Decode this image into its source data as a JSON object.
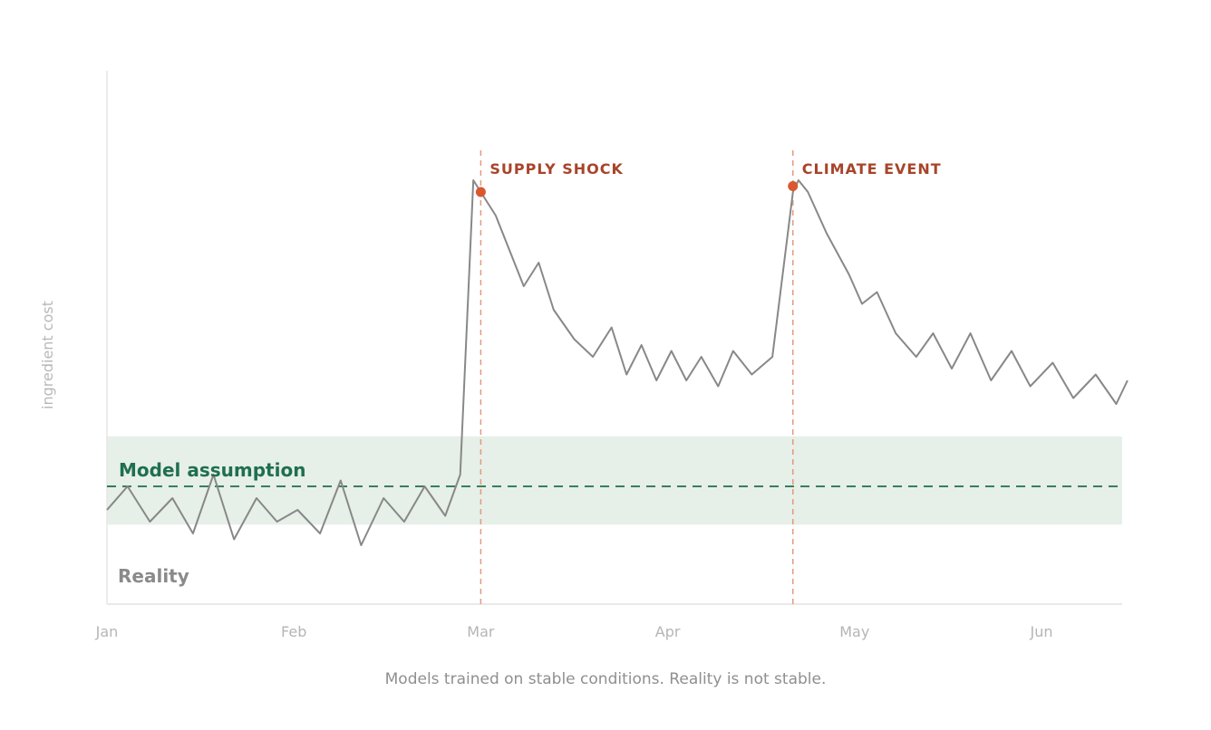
{
  "chart_data": {
    "type": "line",
    "ylabel": "ingredient cost",
    "xlabel": "",
    "x_ticks": [
      "Jan",
      "Feb",
      "Mar",
      "Apr",
      "May",
      "Jun"
    ],
    "ylim": [
      0,
      100
    ],
    "grid": false,
    "caption": "Models trained on stable conditions. Reality is not stable.",
    "model_assumption": {
      "label": "Model assumption",
      "value": 20,
      "band": [
        13.5,
        28.5
      ],
      "color": "#1f6f50",
      "band_color": "#e6efe8"
    },
    "series": [
      {
        "name": "Reality",
        "color": "#888888",
        "x": [
          0,
          0.11,
          0.23,
          0.35,
          0.46,
          0.57,
          0.68,
          0.8,
          0.91,
          1.02,
          1.14,
          1.25,
          1.36,
          1.48,
          1.59,
          1.7,
          1.81,
          1.89,
          1.96,
          2.0,
          2.08,
          2.23,
          2.31,
          2.39,
          2.5,
          2.6,
          2.7,
          2.78,
          2.86,
          2.94,
          3.02,
          3.1,
          3.18,
          3.27,
          3.35,
          3.45,
          3.56,
          3.67,
          3.7,
          3.75,
          3.85,
          3.97,
          4.04,
          4.12,
          4.22,
          4.33,
          4.42,
          4.52,
          4.62,
          4.73,
          4.84,
          4.94,
          5.06,
          5.17,
          5.29,
          5.4,
          5.46
        ],
        "values": [
          16,
          20,
          14,
          18,
          12,
          22,
          11,
          18,
          14,
          16,
          12,
          21,
          10,
          18,
          14,
          20,
          15,
          22,
          72,
          70,
          66,
          54,
          58,
          50,
          45,
          42,
          47,
          39,
          44,
          38,
          43,
          38,
          42,
          37,
          43,
          39,
          42,
          70,
          72,
          70,
          63,
          56,
          51,
          53,
          46,
          42,
          46,
          40,
          46,
          38,
          43,
          37,
          41,
          35,
          39,
          34,
          38
        ]
      }
    ],
    "events": [
      {
        "label": "SUPPLY SHOCK",
        "x": 2.0,
        "value": 70,
        "color": "#d9582f"
      },
      {
        "label": "CLIMATE EVENT",
        "x": 3.67,
        "value": 71,
        "color": "#d9582f"
      }
    ]
  }
}
